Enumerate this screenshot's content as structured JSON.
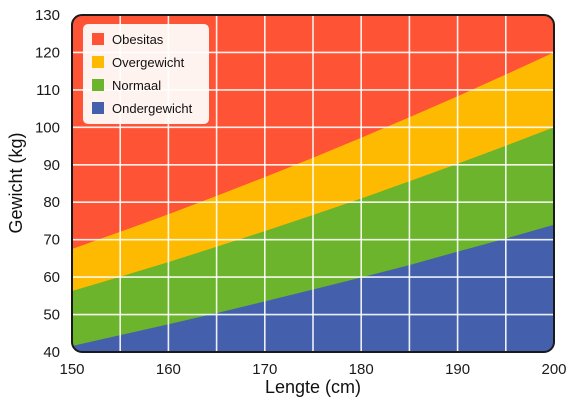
{
  "chart_data": {
    "type": "area",
    "title": "",
    "xlabel": "Lengte (cm)",
    "ylabel": "Gewicht (kg)",
    "xlim": [
      150,
      200
    ],
    "ylim": [
      40,
      130
    ],
    "x_ticks": [
      150,
      160,
      170,
      180,
      190,
      200
    ],
    "y_ticks": [
      40,
      50,
      60,
      70,
      80,
      90,
      100,
      110,
      120,
      130
    ],
    "grid": true,
    "legend_position": "top-left",
    "x": [
      150,
      155,
      160,
      165,
      170,
      175,
      180,
      185,
      190,
      195,
      200
    ],
    "series": [
      {
        "name": "Obesitas",
        "color": "#fe5335",
        "values": [
          130,
          130,
          130,
          130,
          130,
          130,
          130,
          130,
          130,
          130,
          130
        ]
      },
      {
        "name": "Overgewicht",
        "color": "#feba00",
        "values": [
          67.5,
          72.1,
          76.8,
          81.7,
          86.7,
          91.9,
          97.2,
          102.7,
          108.3,
          114.1,
          120.0
        ]
      },
      {
        "name": "Normaal",
        "color": "#6cb42c",
        "values": [
          56.3,
          60.1,
          64.0,
          68.1,
          72.3,
          76.6,
          81.0,
          85.6,
          90.3,
          95.1,
          100.0
        ]
      },
      {
        "name": "Ondergewicht",
        "color": "#4460ac",
        "values": [
          41.6,
          44.5,
          47.4,
          50.4,
          53.5,
          56.7,
          59.9,
          63.2,
          66.8,
          70.3,
          74.0
        ]
      }
    ]
  }
}
